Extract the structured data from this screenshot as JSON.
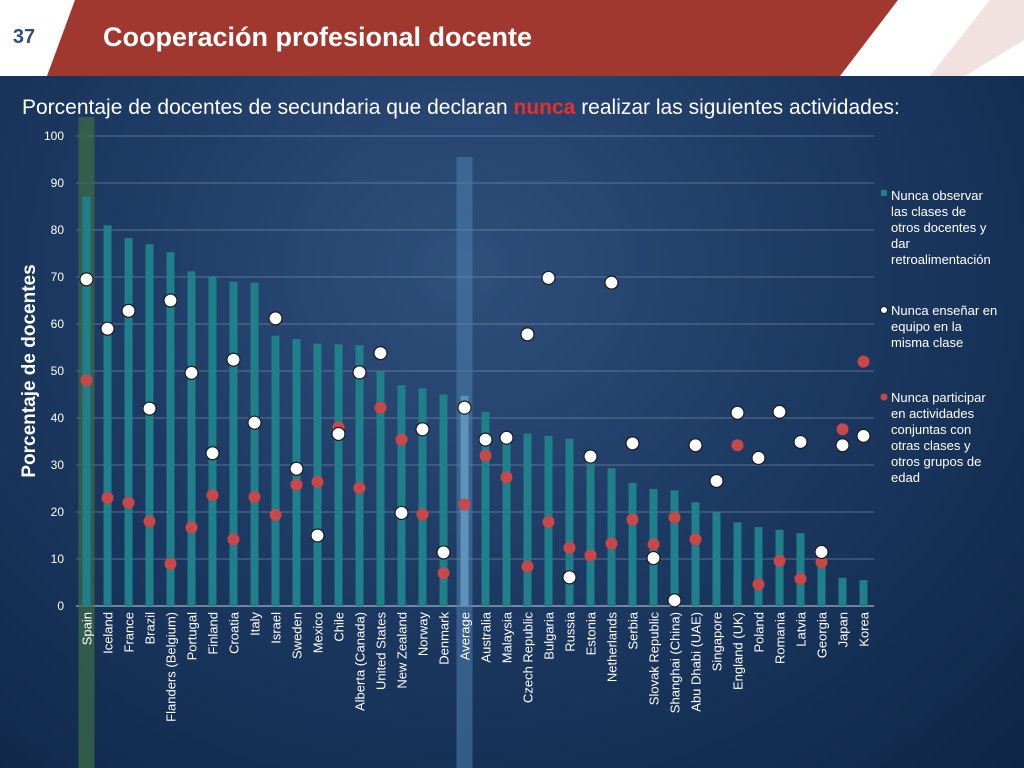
{
  "header": {
    "page_number": "37",
    "title": "Cooperación profesional docente",
    "brand_color": "#a0382f"
  },
  "subtitle": {
    "prefix": "Porcentaje de docentes de secundaria que declaran ",
    "emphasis": "nunca",
    "suffix": " realizar las siguientes actividades:"
  },
  "chart_data": {
    "type": "bar",
    "title": "",
    "xlabel": "",
    "ylabel": "Porcentaje de docentes",
    "ylim": [
      0,
      100
    ],
    "yticks": [
      0,
      10,
      20,
      30,
      40,
      50,
      60,
      70,
      80,
      90,
      100
    ],
    "grid": true,
    "legend_position": "right",
    "highlighted_categories": [
      "Spain",
      "Average"
    ],
    "categories": [
      "Spain",
      "Iceland",
      "France",
      "Brazil",
      "Flanders (Belgium)",
      "Portugal",
      "Finland",
      "Croatia",
      "Italy",
      "Israel",
      "Sweden",
      "Mexico",
      "Chile",
      "Alberta (Canada)",
      "United States",
      "New Zealand",
      "Norway",
      "Denmark",
      "Average",
      "Australia",
      "Malaysia",
      "Czech Republic",
      "Bulgaria",
      "Russia",
      "Estonia",
      "Netherlands",
      "Serbia",
      "Slovak Republic",
      "Shanghai (China)",
      "Abu Dhabi (UAE)",
      "Singapore",
      "England (UK)",
      "Poland",
      "Romania",
      "Latvia",
      "Georgia",
      "Japan",
      "Korea"
    ],
    "series": [
      {
        "name": "Nunca observar las clases de otros docentes y dar retroalimentación",
        "kind": "bar",
        "color": "#1f7f8a",
        "values": [
          87.1,
          81.0,
          78.3,
          77.0,
          75.3,
          71.2,
          70.2,
          69.0,
          68.8,
          57.5,
          56.8,
          55.8,
          55.7,
          55.5,
          50.0,
          47.0,
          46.3,
          45.0,
          44.7,
          41.3,
          36.8,
          36.7,
          36.2,
          35.6,
          30.7,
          29.3,
          26.2,
          24.9,
          24.6,
          22.1,
          20.0,
          17.8,
          16.8,
          16.2,
          15.5,
          9.5,
          6.0,
          5.5
        ]
      },
      {
        "name": "Nunca enseñar en equipo en la misma clase",
        "kind": "marker",
        "color": "#ffffff",
        "values": [
          69.5,
          59.0,
          62.8,
          42.0,
          65.0,
          49.6,
          32.5,
          52.4,
          39.0,
          61.2,
          29.2,
          15.0,
          36.6,
          49.7,
          53.8,
          19.8,
          37.6,
          11.4,
          42.2,
          35.4,
          35.8,
          57.8,
          69.8,
          6.1,
          31.8,
          68.8,
          34.6,
          10.2,
          1.2,
          34.2,
          26.6,
          41.1,
          31.5,
          41.3,
          34.9,
          11.5,
          34.2,
          36.2
        ]
      },
      {
        "name": "Nunca participar en actividades conjuntas con otras clases y otros grupos de edad",
        "kind": "marker",
        "color": "#c8484a",
        "values": [
          48.0,
          23.0,
          22.0,
          18.0,
          9.0,
          16.7,
          23.6,
          14.2,
          23.2,
          19.4,
          25.8,
          26.4,
          38.0,
          25.1,
          42.2,
          35.4,
          19.5,
          7.0,
          21.6,
          32.0,
          27.4,
          8.4,
          17.9,
          12.4,
          10.8,
          13.3,
          18.4,
          13.1,
          18.8,
          14.2,
          26.4,
          34.2,
          4.6,
          9.6,
          5.8,
          9.3,
          37.6,
          52.0
        ]
      }
    ]
  }
}
